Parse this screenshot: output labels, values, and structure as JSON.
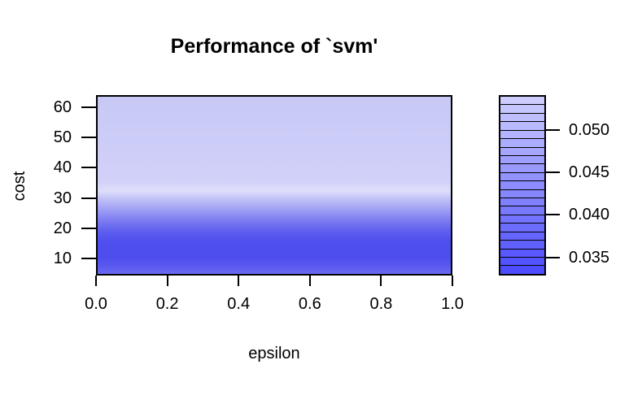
{
  "chart": {
    "title": "Performance of `svm'",
    "xlabel": "epsilon",
    "ylabel": "cost",
    "x_tick_labels": [
      "0.0",
      "0.2",
      "0.4",
      "0.6",
      "0.8",
      "1.0"
    ],
    "y_tick_labels": [
      "60",
      "50",
      "40",
      "30",
      "20",
      "10"
    ],
    "legend_tick_labels": [
      "0.050",
      "0.045",
      "0.040",
      "0.035"
    ]
  },
  "heatmap": {
    "gradient_stops": [
      [
        0,
        "#c8c8f6"
      ],
      [
        30,
        "#cdcdf8"
      ],
      [
        48,
        "#d1d1f9"
      ],
      [
        53,
        "#dedefb"
      ],
      [
        58,
        "#bebef7"
      ],
      [
        63,
        "#a2a2f5"
      ],
      [
        69,
        "#7f7ff2"
      ],
      [
        75,
        "#6060ef"
      ],
      [
        81,
        "#4f4fee"
      ],
      [
        90,
        "#4d4ded"
      ],
      [
        95,
        "#5a5aef"
      ],
      [
        100,
        "#6e6ef2"
      ]
    ]
  },
  "legend": {
    "colors_top_to_bottom": [
      "#CCCCFF",
      "#C6C6FF",
      "#BFBFFF",
      "#B9B9FF",
      "#B3B3FF",
      "#ACACFF",
      "#A6A6FF",
      "#9F9FFF",
      "#9999FF",
      "#9393FF",
      "#8C8CFF",
      "#8686FF",
      "#8080FF",
      "#7979FF",
      "#7373FF",
      "#6C6CFF",
      "#6666FF",
      "#6060FF",
      "#5959FF",
      "#5353FF",
      "#4D4DFF"
    ]
  },
  "chart_data": {
    "type": "heatmap",
    "title": "Performance of `svm'",
    "xlabel": "epsilon",
    "ylabel": "cost",
    "x_ticks": [
      0.0,
      0.2,
      0.4,
      0.6,
      0.8,
      1.0
    ],
    "y_ticks": [
      10,
      20,
      30,
      40,
      50,
      60
    ],
    "x_range": [
      0.0,
      1.0
    ],
    "y_range_approx": [
      4,
      64
    ],
    "grid": false,
    "legend_position": "right",
    "color_scale": {
      "labeled_values": [
        0.05,
        0.045,
        0.04,
        0.035
      ],
      "range_approx": [
        0.033,
        0.054
      ],
      "levels": 21,
      "step": 0.001,
      "low_value_color": "#4D4DFF",
      "high_value_color": "#CCCCFF",
      "palette": "hsv blue, saturation 0.7 (low) to 0.2 (high)"
    },
    "pattern": "error varies mainly with cost and is nearly constant across epsilon (horizontal bands)",
    "approx_error_by_cost": {
      "cost": [
        64,
        45,
        30,
        25,
        20,
        15,
        12,
        8,
        5
      ],
      "error": [
        0.0535,
        0.054,
        0.0545,
        0.049,
        0.041,
        0.034,
        0.033,
        0.034,
        0.0385
      ]
    }
  }
}
